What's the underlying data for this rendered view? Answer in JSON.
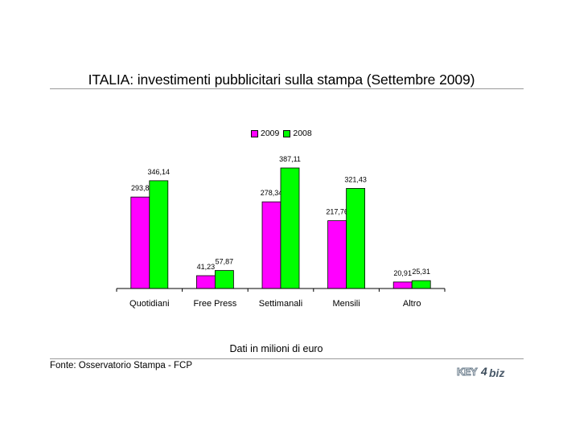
{
  "title": "ITALIA: investimenti pubblicitari sulla stampa (Settembre 2009)",
  "unit_note": "Dati in milioni di euro",
  "source": "Fonte: Osservatorio Stampa - FCP",
  "logo": {
    "part1": "KEY",
    "part2": "4",
    "part3": "biz"
  },
  "colors": {
    "s2009": "#ff00ff",
    "s2008": "#00ff00",
    "axis": "#000000",
    "rule": "#9a9a9a"
  },
  "legend": {
    "s2009": "2009",
    "s2008": "2008"
  },
  "chart_data": {
    "type": "bar",
    "title": "ITALIA: investimenti pubblicitari sulla stampa (Settembre 2009)",
    "categories": [
      "Quotidiani",
      "Free Press",
      "Settimanali",
      "Mensili",
      "Altro"
    ],
    "series": [
      {
        "name": "2009",
        "values": [
          293.8,
          41.23,
          278.34,
          217.76,
          20.91
        ],
        "labels": [
          "293,8",
          "41,23",
          "278,34",
          "217,76",
          "20,91"
        ]
      },
      {
        "name": "2008",
        "values": [
          346.14,
          57.87,
          387.11,
          321.43,
          25.31
        ],
        "labels": [
          "346,14",
          "57,87",
          "387,11",
          "321,43",
          "25,31"
        ]
      }
    ],
    "xlabel": "",
    "ylabel": "",
    "grid": false,
    "legend_position": "top"
  }
}
